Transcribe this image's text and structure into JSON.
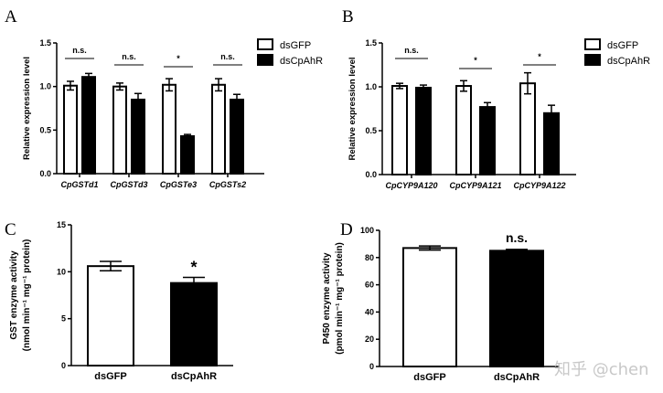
{
  "watermark": "知乎 @chen",
  "chart_data": [
    {
      "panel": "A",
      "type": "bar",
      "ylabel": "Relative expression level",
      "ylim": [
        0,
        1.5
      ],
      "yticks": [
        "0.0",
        "0.5",
        "1.0",
        "1.5"
      ],
      "ytickvals": [
        0,
        0.5,
        1,
        1.5
      ],
      "categories": [
        "CpGSTd1",
        "CpGSTd3",
        "CpGSTe3",
        "CpGSTs2"
      ],
      "italic_categories": true,
      "series": [
        {
          "name": "dsGFP",
          "fill": "#ffffff",
          "values": [
            1.01,
            1.0,
            1.02,
            1.02
          ],
          "errors": [
            0.05,
            0.04,
            0.07,
            0.07
          ]
        },
        {
          "name": "dsCpAhR",
          "fill": "#000000",
          "values": [
            1.11,
            0.85,
            0.43,
            0.85
          ],
          "errors": [
            0.04,
            0.07,
            0.02,
            0.06
          ]
        }
      ],
      "significance": [
        "n.s.",
        "n.s.",
        "*",
        "n.s."
      ],
      "legend": "top-right"
    },
    {
      "panel": "B",
      "type": "bar",
      "ylabel": "Relative expression level",
      "ylim": [
        0,
        1.5
      ],
      "yticks": [
        "0.0",
        "0.5",
        "1.0",
        "1.5"
      ],
      "ytickvals": [
        0,
        0.5,
        1,
        1.5
      ],
      "categories": [
        "CpCYP9A120",
        "CpCYP9A121",
        "CpCYP9A122"
      ],
      "italic_categories": true,
      "series": [
        {
          "name": "dsGFP",
          "fill": "#ffffff",
          "values": [
            1.01,
            1.01,
            1.04
          ],
          "errors": [
            0.03,
            0.06,
            0.12
          ]
        },
        {
          "name": "dsCpAhR",
          "fill": "#000000",
          "values": [
            0.99,
            0.77,
            0.7
          ],
          "errors": [
            0.03,
            0.05,
            0.09
          ]
        }
      ],
      "significance": [
        "n.s.",
        "*",
        "*"
      ],
      "legend": "top-right"
    },
    {
      "panel": "C",
      "type": "bar",
      "ylabel": "GST enzyme activity",
      "ylabel2": "(nmol min⁻¹ mg⁻¹ protein)",
      "ylim": [
        0,
        15
      ],
      "yticks": [
        "0",
        "5",
        "10",
        "15"
      ],
      "ytickvals": [
        0,
        5,
        10,
        15
      ],
      "categories": [
        "dsGFP",
        "dsCpAhR"
      ],
      "values": [
        10.6,
        8.8
      ],
      "errors": [
        0.5,
        0.6
      ],
      "fills": [
        "#ffffff",
        "#000000"
      ],
      "significance": "*"
    },
    {
      "panel": "D",
      "type": "bar",
      "ylabel": "P450 enzyme activity",
      "ylabel2": "(pmol min⁻¹ mg⁻¹ protein)",
      "ylim": [
        0,
        100
      ],
      "yticks": [
        "0",
        "20",
        "40",
        "60",
        "80",
        "100"
      ],
      "ytickvals": [
        0,
        20,
        40,
        60,
        80,
        100
      ],
      "categories": [
        "dsGFP",
        "dsCpAhR"
      ],
      "values": [
        87,
        85
      ],
      "errors": [
        1.5,
        1.0
      ],
      "fills": [
        "#ffffff",
        "#000000"
      ],
      "significance": "n.s."
    }
  ]
}
